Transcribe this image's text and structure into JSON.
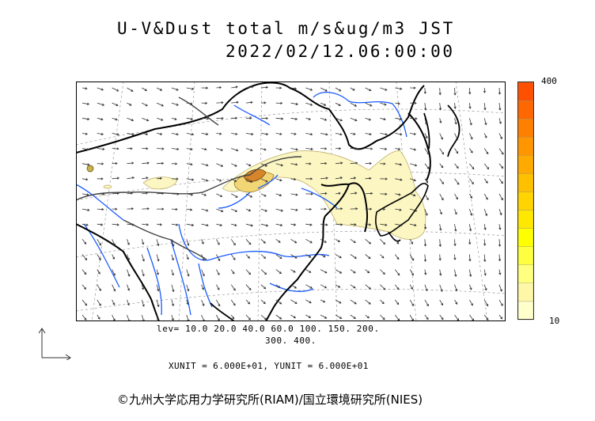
{
  "header": {
    "title": "U-V&Dust total m/s&ug/m3 JST",
    "timestamp": "2022/02/12.06:00:00"
  },
  "colorbar": {
    "max_label": "400",
    "min_label": "10",
    "colors": [
      "#ffffcc",
      "#fff7a8",
      "#ffff80",
      "#ffff40",
      "#ffff00",
      "#ffe800",
      "#ffd400",
      "#ffc000",
      "#ffaa00",
      "#ff9600",
      "#ff8000",
      "#ff6800",
      "#ff5000"
    ]
  },
  "legend": {
    "levels_line1": "lev= 10.0 20.0 40.0 60.0 100. 150. 200.",
    "levels_line2": "300. 400.",
    "units": "XUNIT = 6.000E+01, YUNIT = 6.000E+01"
  },
  "footer": {
    "copyright": "©九州大学応用力学研究所(RIAM)/国立環境研究所(NIES)"
  },
  "colors": {
    "dust_low": "#fbf6c2",
    "dust_mid": "#f2d675",
    "dust_high": "#d6852a",
    "rivers": "#1a5cff",
    "coast": "#000000",
    "borders": "#444444"
  }
}
